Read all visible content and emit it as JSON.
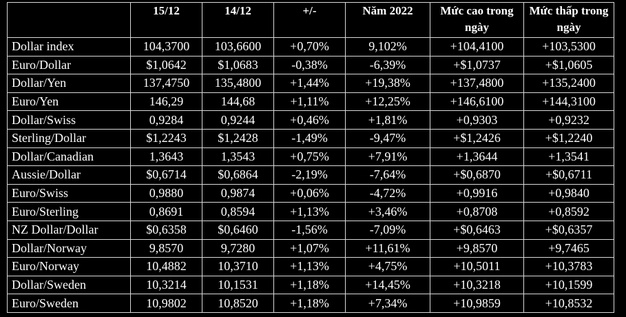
{
  "table": {
    "headers": [
      "",
      "15/12",
      "14/12",
      "+/-",
      "Năm 2022",
      "Mức cao trong ngày",
      "Mức thấp trong ngày"
    ],
    "rows": [
      [
        "Dollar index",
        "104,3700",
        "103,6600",
        "+0,70%",
        "9,102%",
        "+104,4100",
        "+103,5300"
      ],
      [
        "Euro/Dollar",
        "$1,0642",
        "$1,0683",
        "-0,38%",
        "-6,39%",
        "+$1,0737",
        "+$1,0605"
      ],
      [
        "Dollar/Yen",
        "137,4750",
        "135,4800",
        "+1,44%",
        "+19,38%",
        "+137,4800",
        "+135,2400"
      ],
      [
        "Euro/Yen",
        "146,29",
        "144,68",
        "+1,11%",
        "+12,25%",
        "+146,6100",
        "+144,3100"
      ],
      [
        "Dollar/Swiss",
        "0,9284",
        "0,9244",
        "+0,46%",
        "+1,81%",
        "+0,9303",
        "+0,9232"
      ],
      [
        "Sterling/Dollar",
        "$1,2243",
        "$1,2428",
        "-1,49%",
        "-9,47%",
        "+$1,2426",
        "+$1,2240"
      ],
      [
        "Dollar/Canadian",
        "1,3643",
        "1,3543",
        "+0,75%",
        "+7,91%",
        "+1,3644",
        "+1,3541"
      ],
      [
        "Aussie/Dollar",
        "$0,6714",
        "$0,6864",
        "-2,19%",
        "-7,64%",
        "+$0,6870",
        "+$0,6711"
      ],
      [
        "Euro/Swiss",
        "0,9880",
        "0,9874",
        "+0,06%",
        "-4,72%",
        "+0,9916",
        "+0,9840"
      ],
      [
        "Euro/Sterling",
        "0,8691",
        "0,8594",
        "+1,13%",
        "+3,46%",
        "+0,8708",
        "+0,8592"
      ],
      [
        "NZ Dollar/Dollar",
        "$0,6358",
        "$0,6460",
        "-1,56%",
        "-7,09%",
        "+$0,6463",
        "+$0,6357"
      ],
      [
        "Dollar/Norway",
        "9,8570",
        "9,7280",
        "+1,07%",
        "+11,61%",
        "+9,8570",
        "+9,7465"
      ],
      [
        "Euro/Norway",
        "10,4882",
        "10,3710",
        "+1,13%",
        "+4,75%",
        "+10,5011",
        "+10,3783"
      ],
      [
        "Dollar/Sweden",
        "10,3214",
        "10,1531",
        "+1,18%",
        "+14,45%",
        "+10,3218",
        "+10,1599"
      ],
      [
        "Euro/Sweden",
        "10,9802",
        "10,8520",
        "+1,18%",
        "+7,34%",
        "+10,9859",
        "+10,8532"
      ]
    ]
  }
}
